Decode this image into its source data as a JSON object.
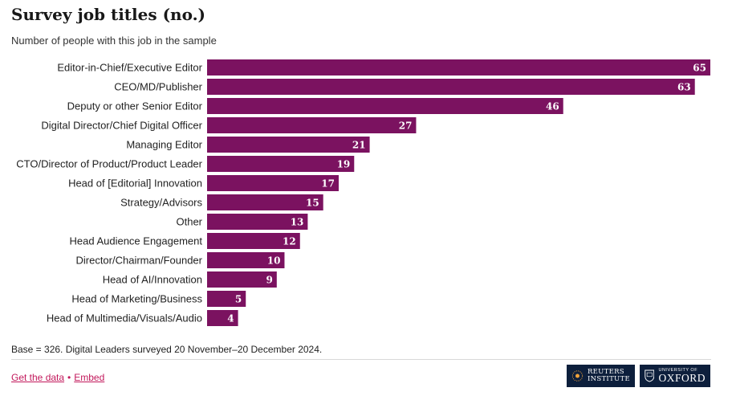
{
  "title": "Survey job titles (no.)",
  "subtitle": "Number of people with this job in the sample",
  "note": "Base = 326. Digital Leaders surveyed 20 November–20 December 2024.",
  "links": {
    "get_data": "Get the data",
    "separator": "•",
    "embed": "Embed"
  },
  "logos": {
    "reuters_line1": "REUTERS",
    "reuters_line2": "INSTITUTE",
    "oxford_small": "UNIVERSITY OF",
    "oxford": "OXFORD"
  },
  "colors": {
    "bar": "#7b1260",
    "logo_bg": "#0d1f3c",
    "link": "#c2185b"
  },
  "chart_data": {
    "type": "bar",
    "orientation": "horizontal",
    "categories": [
      "Editor-in-Chief/Executive Editor",
      "CEO/MD/Publisher",
      "Deputy or other Senior Editor",
      "Digital Director/Chief Digital Officer",
      "Managing Editor",
      "CTO/Director of Product/Product Leader",
      "Head of [Editorial] Innovation",
      "Strategy/Advisors",
      "Other",
      "Head Audience Engagement",
      "Director/Chairman/Founder",
      "Head of AI/Innovation",
      "Head of Marketing/Business",
      "Head of Multimedia/Visuals/Audio"
    ],
    "values": [
      65,
      63,
      46,
      27,
      21,
      19,
      17,
      15,
      13,
      12,
      10,
      9,
      5,
      4
    ],
    "xlim": [
      0,
      65
    ],
    "grid": false,
    "data_labels": true
  }
}
